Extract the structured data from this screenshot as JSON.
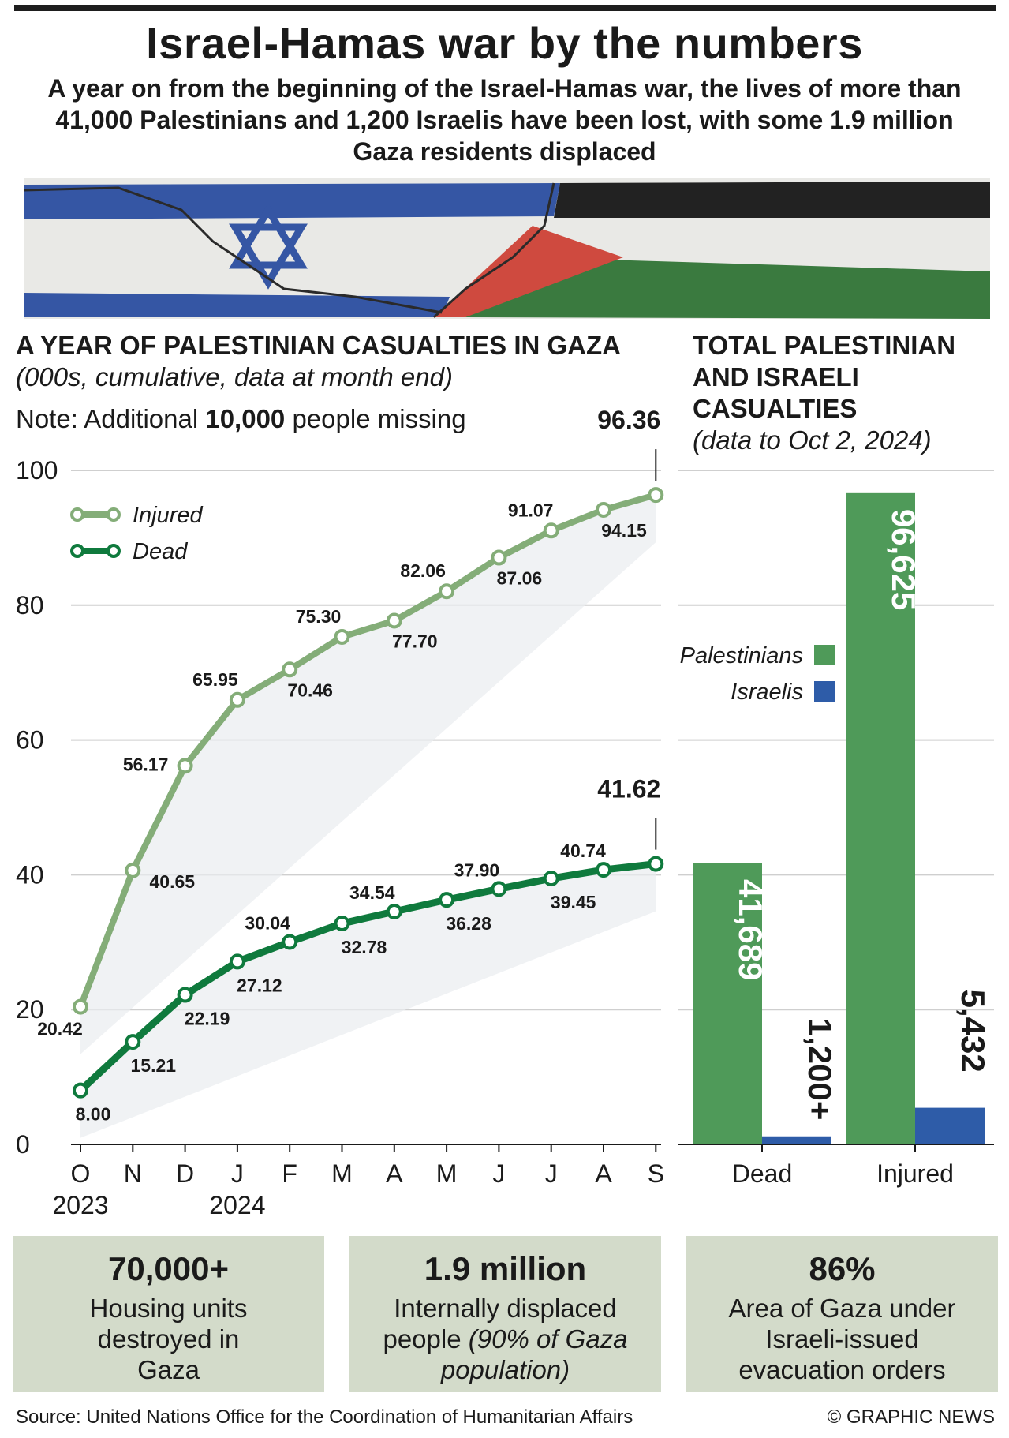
{
  "header": {
    "title": "Israel-Hamas war by the numbers",
    "subtitle": "A year on from the beginning of the Israel-Hamas war, the lives of more than 41,000 Palestinians and 1,200 Israelis have been lost, with some 1.9 million Gaza residents displaced"
  },
  "left_section": {
    "title_bold": "A YEAR OF PALESTINIAN CASUALTIES IN GAZA",
    "title_italic": "(000s, cumulative, data at month end)",
    "note_prefix": "Note: Additional ",
    "note_bold": "10,000",
    "note_suffix": " people missing"
  },
  "right_section": {
    "title_bold": "TOTAL PALESTINIAN AND ISRAELI CASUALTIES",
    "title_italic": "(data to Oct 2, 2024)"
  },
  "colors": {
    "injured": "#84ad78",
    "dead": "#0f7a3d",
    "palestinians": "#4f9a59",
    "israelis": "#2e5ca8",
    "card_bg": "#d3dbca",
    "flag_blue": "#3556a4",
    "flag_red": "#cf4a3f",
    "flag_green": "#3a7a3f",
    "flag_black": "#222222"
  },
  "chart_data": [
    {
      "type": "line",
      "title": "A YEAR OF PALESTINIAN CASUALTIES IN GAZA",
      "ylim": [
        0,
        100
      ],
      "yticks": [
        0,
        20,
        40,
        60,
        80,
        100
      ],
      "x": [
        "O",
        "N",
        "D",
        "J",
        "F",
        "M",
        "A",
        "M",
        "J",
        "J",
        "A",
        "S"
      ],
      "year_labels": [
        {
          "index": 0,
          "text": "2023"
        },
        {
          "index": 3,
          "text": "2024"
        }
      ],
      "grid": true,
      "legend": "top-left",
      "series": [
        {
          "name": "Injured",
          "values": [
            20.42,
            40.65,
            56.17,
            65.95,
            70.46,
            75.3,
            77.7,
            82.06,
            87.06,
            91.07,
            94.15,
            96.36
          ],
          "labels": [
            "20.42",
            "40.65",
            "56.17",
            "65.95",
            "70.46",
            "75.30",
            "77.70",
            "82.06",
            "87.06",
            "91.07",
            "94.15",
            "96.36"
          ]
        },
        {
          "name": "Dead",
          "values": [
            8.0,
            15.21,
            22.19,
            27.12,
            30.04,
            32.78,
            34.54,
            36.28,
            37.9,
            39.45,
            40.74,
            41.62
          ],
          "labels": [
            "8.00",
            "15.21",
            "22.19",
            "27.12",
            "30.04",
            "32.78",
            "34.54",
            "36.28",
            "37.90",
            "39.45",
            "40.74",
            "41.62"
          ]
        }
      ]
    },
    {
      "type": "bar",
      "categories": [
        "Dead",
        "Injured"
      ],
      "legend": "middle-left",
      "series": [
        {
          "name": "Palestinians",
          "values": [
            41689,
            96625
          ],
          "labels": [
            "41,689",
            "96,625"
          ]
        },
        {
          "name": "Israelis",
          "values": [
            1200,
            5432
          ],
          "labels": [
            "1,200+",
            "5,432"
          ]
        }
      ]
    }
  ],
  "cards": [
    {
      "big": "70,000+",
      "desc": "Housing units destroyed in Gaza"
    },
    {
      "big": "1.9 million",
      "desc": "Internally displaced people",
      "desc_italic": "(90% of Gaza population)"
    },
    {
      "big": "86%",
      "desc": "Area of Gaza under Israeli-issued evacuation orders"
    }
  ],
  "footer": {
    "source": "Source: United Nations Office for the Coordination of Humanitarian Affairs",
    "credit": "© GRAPHIC NEWS"
  }
}
